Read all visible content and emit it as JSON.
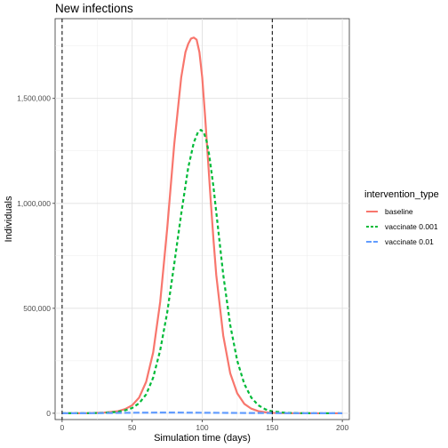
{
  "chart_data": {
    "type": "line",
    "title": "New infections",
    "xlabel": "Simulation time (days)",
    "ylabel": "Individuals",
    "xlim": [
      -5,
      205
    ],
    "ylim": [
      -30000,
      1880000
    ],
    "x_ticks": [
      0,
      50,
      100,
      150,
      200
    ],
    "x_tick_labels": [
      "0",
      "50",
      "100",
      "150",
      "200"
    ],
    "y_ticks": [
      0,
      500000,
      1000000,
      1500000
    ],
    "y_tick_labels": [
      "0",
      "500,000",
      "1,000,000",
      "1,500,000"
    ],
    "grid": true,
    "vertical_reference_lines": [
      0,
      150
    ],
    "legend": {
      "title": "intervention_type",
      "position": "right"
    },
    "series": [
      {
        "name": "baseline",
        "color": "#F8766D",
        "dash": "solid",
        "x": [
          0,
          10,
          20,
          30,
          40,
          45,
          50,
          55,
          60,
          65,
          70,
          75,
          80,
          85,
          88,
          90,
          92,
          94,
          96,
          98,
          100,
          102,
          104,
          106,
          108,
          110,
          115,
          120,
          125,
          130,
          135,
          140,
          145,
          150,
          160,
          170,
          180,
          190,
          200
        ],
        "y": [
          0,
          200,
          800,
          3000,
          10000,
          20000,
          38000,
          75000,
          150000,
          290000,
          530000,
          880000,
          1280000,
          1600000,
          1720000,
          1760000,
          1785000,
          1790000,
          1780000,
          1720000,
          1600000,
          1420000,
          1220000,
          1020000,
          830000,
          660000,
          370000,
          190000,
          95000,
          45000,
          22000,
          10000,
          5000,
          2000,
          500,
          100,
          0,
          0,
          0
        ]
      },
      {
        "name": "vaccinate 0.001",
        "color": "#00BA38",
        "dash": "dashed",
        "x": [
          0,
          10,
          20,
          30,
          40,
          45,
          50,
          55,
          60,
          65,
          70,
          75,
          80,
          85,
          90,
          94,
          97,
          99,
          101,
          103,
          105,
          108,
          110,
          115,
          120,
          125,
          130,
          135,
          140,
          145,
          150,
          160,
          170,
          180,
          190,
          200
        ],
        "y": [
          0,
          150,
          600,
          2000,
          7000,
          14000,
          25000,
          48000,
          90000,
          170000,
          300000,
          480000,
          710000,
          950000,
          1170000,
          1290000,
          1340000,
          1350000,
          1340000,
          1300000,
          1230000,
          1080000,
          960000,
          660000,
          420000,
          250000,
          140000,
          75000,
          38000,
          19000,
          9000,
          2000,
          400,
          0,
          0,
          0
        ]
      },
      {
        "name": "vaccinate 0.01",
        "color": "#619CFF",
        "dash": "longdash",
        "x": [
          0,
          25,
          50,
          75,
          100,
          125,
          150,
          175,
          200
        ],
        "y": [
          0,
          500,
          2500,
          3500,
          2500,
          1500,
          800,
          300,
          0
        ]
      }
    ]
  }
}
